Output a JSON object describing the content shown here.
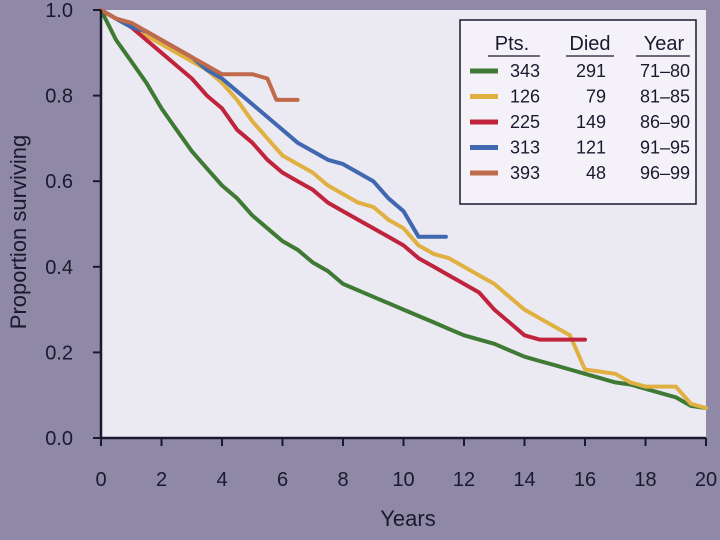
{
  "chart_data": {
    "type": "line",
    "title": "",
    "xlabel": "Years",
    "ylabel": "Proportion surviving",
    "xlim": [
      0,
      20
    ],
    "ylim": [
      0.0,
      1.0
    ],
    "x_ticks": [
      0,
      2,
      4,
      6,
      8,
      10,
      12,
      14,
      16,
      18,
      20
    ],
    "y_ticks": [
      0.0,
      0.2,
      0.4,
      0.6,
      0.8,
      1.0
    ],
    "x_tick_labels": [
      "0",
      "2",
      "4",
      "6",
      "8",
      "10",
      "12",
      "14",
      "16",
      "18",
      "20"
    ],
    "y_tick_labels": [
      "0.0",
      "0.2",
      "0.4",
      "0.6",
      "0.8",
      "1.0"
    ],
    "grid": false,
    "legend": {
      "position": "top-right",
      "headers": [
        "Pts.",
        "Died",
        "Year"
      ]
    },
    "colors": {
      "background": "#8f88a6",
      "plot_area": "#ebe9f2",
      "axis": "#1a1a2e"
    },
    "series": [
      {
        "name": "71–80",
        "pts": "343",
        "died": "291",
        "year": "71–80",
        "color": "#3f7a35",
        "points": [
          [
            0,
            1.0
          ],
          [
            0.5,
            0.93
          ],
          [
            1,
            0.88
          ],
          [
            1.5,
            0.83
          ],
          [
            2,
            0.77
          ],
          [
            2.5,
            0.72
          ],
          [
            3,
            0.67
          ],
          [
            3.5,
            0.63
          ],
          [
            4,
            0.59
          ],
          [
            4.5,
            0.56
          ],
          [
            5,
            0.52
          ],
          [
            5.5,
            0.49
          ],
          [
            6,
            0.46
          ],
          [
            6.5,
            0.44
          ],
          [
            7,
            0.41
          ],
          [
            7.5,
            0.39
          ],
          [
            8,
            0.36
          ],
          [
            8.5,
            0.345
          ],
          [
            9,
            0.33
          ],
          [
            9.5,
            0.315
          ],
          [
            10,
            0.3
          ],
          [
            10.5,
            0.285
          ],
          [
            11,
            0.27
          ],
          [
            11.5,
            0.255
          ],
          [
            12,
            0.24
          ],
          [
            12.5,
            0.23
          ],
          [
            13,
            0.22
          ],
          [
            13.5,
            0.205
          ],
          [
            14,
            0.19
          ],
          [
            14.5,
            0.18
          ],
          [
            15,
            0.17
          ],
          [
            15.5,
            0.16
          ],
          [
            16,
            0.15
          ],
          [
            16.5,
            0.14
          ],
          [
            17,
            0.13
          ],
          [
            17.5,
            0.125
          ],
          [
            18,
            0.115
          ],
          [
            18.5,
            0.105
          ],
          [
            19,
            0.095
          ],
          [
            19.5,
            0.075
          ],
          [
            20,
            0.07
          ]
        ]
      },
      {
        "name": "81–85",
        "pts": "126",
        "died": "79",
        "year": "81–85",
        "color": "#e0b040",
        "points": [
          [
            0,
            1.0
          ],
          [
            0.5,
            0.98
          ],
          [
            1,
            0.96
          ],
          [
            1.5,
            0.94
          ],
          [
            2,
            0.92
          ],
          [
            2.5,
            0.9
          ],
          [
            3,
            0.88
          ],
          [
            3.5,
            0.86
          ],
          [
            4,
            0.83
          ],
          [
            4.5,
            0.79
          ],
          [
            5,
            0.74
          ],
          [
            5.5,
            0.7
          ],
          [
            6,
            0.66
          ],
          [
            6.5,
            0.64
          ],
          [
            7,
            0.62
          ],
          [
            7.5,
            0.59
          ],
          [
            8,
            0.57
          ],
          [
            8.5,
            0.55
          ],
          [
            9,
            0.54
          ],
          [
            9.5,
            0.51
          ],
          [
            10,
            0.49
          ],
          [
            10.5,
            0.45
          ],
          [
            11,
            0.43
          ],
          [
            11.5,
            0.42
          ],
          [
            12,
            0.4
          ],
          [
            12.5,
            0.38
          ],
          [
            13,
            0.36
          ],
          [
            13.5,
            0.33
          ],
          [
            14,
            0.3
          ],
          [
            14.5,
            0.28
          ],
          [
            15,
            0.26
          ],
          [
            15.5,
            0.24
          ],
          [
            16,
            0.16
          ],
          [
            17,
            0.15
          ],
          [
            17.5,
            0.13
          ],
          [
            18,
            0.12
          ],
          [
            19,
            0.12
          ],
          [
            19.5,
            0.08
          ],
          [
            20,
            0.07
          ]
        ]
      },
      {
        "name": "86–90",
        "pts": "225",
        "died": "149",
        "year": "86–90",
        "color": "#c0243c",
        "points": [
          [
            0,
            1.0
          ],
          [
            0.5,
            0.98
          ],
          [
            1,
            0.96
          ],
          [
            1.5,
            0.93
          ],
          [
            2,
            0.9
          ],
          [
            2.5,
            0.87
          ],
          [
            3,
            0.84
          ],
          [
            3.5,
            0.8
          ],
          [
            4,
            0.77
          ],
          [
            4.5,
            0.72
          ],
          [
            5,
            0.69
          ],
          [
            5.5,
            0.65
          ],
          [
            6,
            0.62
          ],
          [
            6.5,
            0.6
          ],
          [
            7,
            0.58
          ],
          [
            7.5,
            0.55
          ],
          [
            8,
            0.53
          ],
          [
            8.5,
            0.51
          ],
          [
            9,
            0.49
          ],
          [
            9.5,
            0.47
          ],
          [
            10,
            0.45
          ],
          [
            10.5,
            0.42
          ],
          [
            11,
            0.4
          ],
          [
            11.5,
            0.38
          ],
          [
            12,
            0.36
          ],
          [
            12.5,
            0.34
          ],
          [
            13,
            0.3
          ],
          [
            13.5,
            0.27
          ],
          [
            14,
            0.24
          ],
          [
            14.5,
            0.23
          ],
          [
            15,
            0.23
          ],
          [
            16,
            0.23
          ]
        ]
      },
      {
        "name": "91–95",
        "pts": "313",
        "died": "121",
        "year": "91–95",
        "color": "#4068b0",
        "points": [
          [
            0,
            1.0
          ],
          [
            0.5,
            0.98
          ],
          [
            1,
            0.96
          ],
          [
            1.5,
            0.95
          ],
          [
            2,
            0.93
          ],
          [
            2.5,
            0.91
          ],
          [
            3,
            0.89
          ],
          [
            3.5,
            0.86
          ],
          [
            4,
            0.84
          ],
          [
            4.5,
            0.81
          ],
          [
            5,
            0.78
          ],
          [
            5.5,
            0.75
          ],
          [
            6,
            0.72
          ],
          [
            6.5,
            0.69
          ],
          [
            7,
            0.67
          ],
          [
            7.5,
            0.65
          ],
          [
            8,
            0.64
          ],
          [
            8.5,
            0.62
          ],
          [
            9,
            0.6
          ],
          [
            9.5,
            0.56
          ],
          [
            10,
            0.53
          ],
          [
            10.5,
            0.47
          ],
          [
            11,
            0.47
          ],
          [
            11.4,
            0.47
          ]
        ]
      },
      {
        "name": "96–99",
        "pts": "393",
        "died": "48",
        "year": "96–99",
        "color": "#c06a4c",
        "points": [
          [
            0,
            1.0
          ],
          [
            0.5,
            0.98
          ],
          [
            1,
            0.97
          ],
          [
            1.5,
            0.95
          ],
          [
            2,
            0.93
          ],
          [
            2.5,
            0.91
          ],
          [
            3,
            0.89
          ],
          [
            3.5,
            0.87
          ],
          [
            4,
            0.85
          ],
          [
            4.5,
            0.85
          ],
          [
            5,
            0.85
          ],
          [
            5.5,
            0.84
          ],
          [
            5.8,
            0.79
          ],
          [
            6.5,
            0.79
          ]
        ]
      }
    ]
  }
}
